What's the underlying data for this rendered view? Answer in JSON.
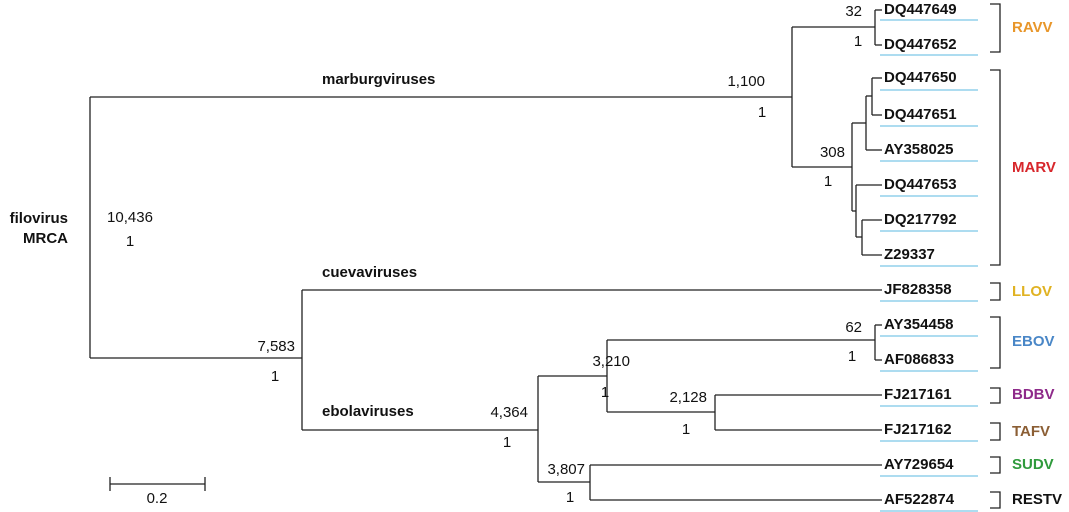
{
  "root": {
    "label": [
      "filovirus",
      "MRCA"
    ],
    "support": "10,436",
    "posterior": "1"
  },
  "groups": [
    "marburgviruses",
    "cuevaviruses",
    "ebolaviruses"
  ],
  "nodes": [
    {
      "support": "1,100",
      "posterior": "1"
    },
    {
      "support": "32",
      "posterior": "1"
    },
    {
      "support": "308",
      "posterior": "1"
    },
    {
      "support": "7,583",
      "posterior": "1"
    },
    {
      "support": "4,364",
      "posterior": "1"
    },
    {
      "support": "3,210",
      "posterior": "1"
    },
    {
      "support": "62",
      "posterior": "1"
    },
    {
      "support": "2,128",
      "posterior": "1"
    },
    {
      "support": "3,807",
      "posterior": "1"
    }
  ],
  "leaves": [
    "DQ447649",
    "DQ447652",
    "DQ447650",
    "DQ447651",
    "AY358025",
    "DQ447653",
    "DQ217792",
    "Z29337",
    "JF828358",
    "AY354458",
    "AF086833",
    "FJ217161",
    "FJ217162",
    "AY729654",
    "AF522874"
  ],
  "clades": [
    {
      "name": "RAVV",
      "color": "#e8962a"
    },
    {
      "name": "MARV",
      "color": "#d7262b"
    },
    {
      "name": "LLOV",
      "color": "#e0b222"
    },
    {
      "name": "EBOV",
      "color": "#4a87c7"
    },
    {
      "name": "BDBV",
      "color": "#8e2a8a"
    },
    {
      "name": "TAFV",
      "color": "#8b5e34"
    },
    {
      "name": "SUDV",
      "color": "#2f9a3c"
    },
    {
      "name": "RESTV",
      "color": "#111111"
    }
  ],
  "scale_bar": "0.2"
}
